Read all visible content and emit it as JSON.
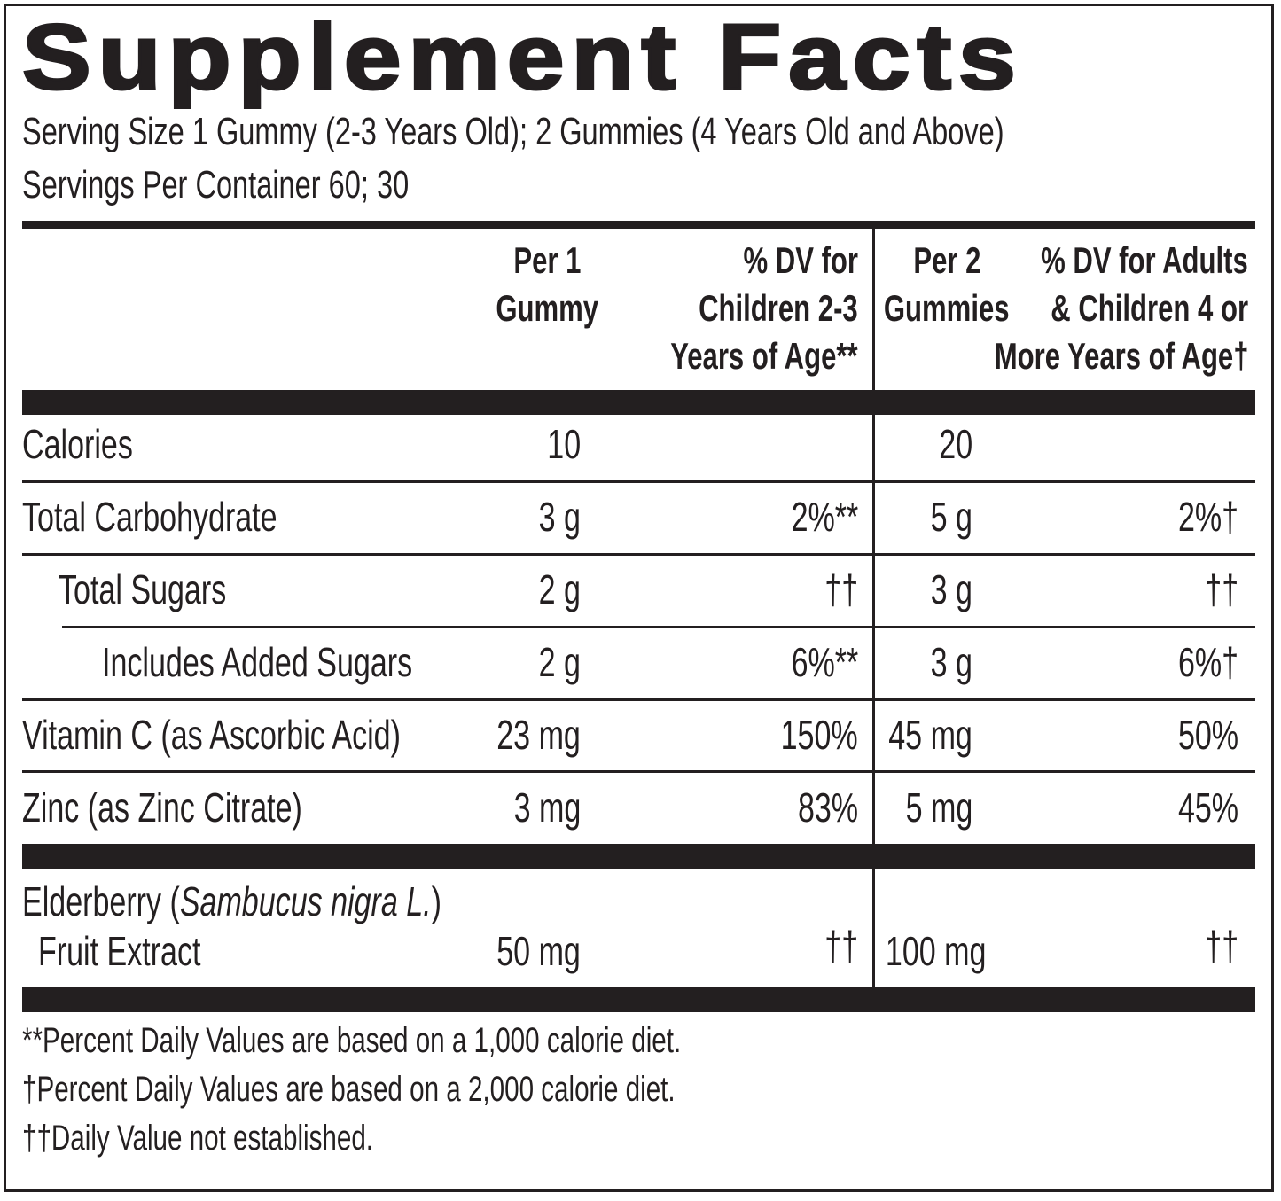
{
  "title": "Supplement Facts",
  "serving_size": "Serving Size 1 Gummy (2-3 Years Old); 2 Gummies (4 Years Old and Above)",
  "servings_per_container": "Servings Per Container 60; 30",
  "headers": {
    "col1": [
      "Per 1",
      "Gummy"
    ],
    "col2": [
      "% DV for",
      "Children 2-3",
      "Years of Age**"
    ],
    "col3": [
      "Per 2",
      "Gummies"
    ],
    "col4": [
      "% DV for Adults",
      "& Children 4 or",
      "More Years of Age†"
    ]
  },
  "rows": [
    {
      "name": "Calories",
      "amt1": "10",
      "dv1": "",
      "amt2": "20",
      "dv2": ""
    },
    {
      "name": "Total Carbohydrate",
      "amt1": "3 g",
      "dv1": "2%**",
      "amt2": "5 g",
      "dv2": "2%†"
    },
    {
      "name": "Total Sugars",
      "amt1": "2 g",
      "dv1": "††",
      "amt2": "3 g",
      "dv2": "††"
    },
    {
      "name": "Includes Added Sugars",
      "amt1": "2 g",
      "dv1": "6%**",
      "amt2": "3 g",
      "dv2": "6%†"
    },
    {
      "name": "Vitamin C (as Ascorbic Acid)",
      "amt1": "23 mg",
      "dv1": "150%",
      "amt2": "45 mg",
      "dv2": "50%"
    },
    {
      "name": "Zinc (as Zinc Citrate)",
      "amt1": "3 mg",
      "dv1": "83%",
      "amt2": "5 mg",
      "dv2": "45%"
    }
  ],
  "elderberry": {
    "name_start": "Elderberry (",
    "name_italic": "Sambucus nigra L.",
    "name_end": ")",
    "name_line2": "Fruit Extract",
    "amt1": "50 mg",
    "dv1": "††",
    "amt2": "100 mg",
    "dv2": "††"
  },
  "footnotes": [
    "**Percent Daily Values are based on a 1,000 calorie diet.",
    "†Percent Daily Values are based on a 2,000 calorie diet.",
    "††Daily Value not established."
  ]
}
